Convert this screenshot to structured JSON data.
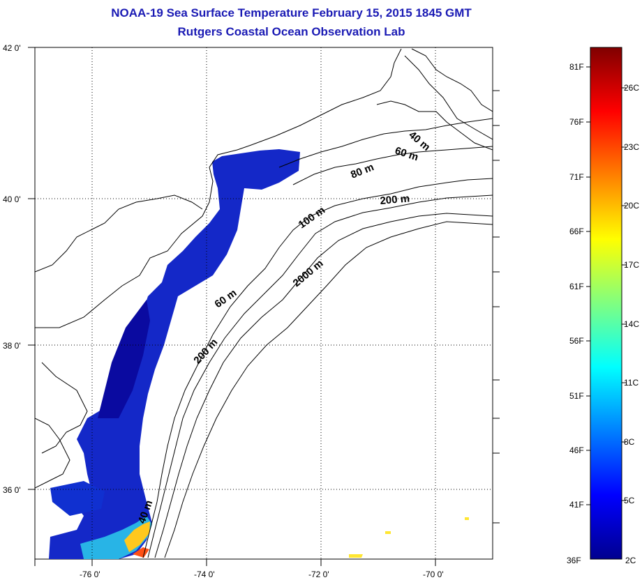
{
  "title": "NOAA-19 Sea Surface Temperature February 15, 2015 1845 GMT",
  "subtitle": "Rutgers Coastal Ocean Observation Lab",
  "map": {
    "lon_range": [
      -77,
      -69
    ],
    "lat_range": [
      35,
      42
    ],
    "lon_ticks": [
      "-76 0'",
      "-74 0'",
      "-72 0'",
      "-70 0'"
    ],
    "lat_ticks": [
      "42 0'",
      "40 0'",
      "38 0'",
      "36 0'"
    ],
    "grid": true,
    "depth_labels": [
      "40 m",
      "60 m",
      "80 m",
      "100 m",
      "200 m",
      "2000 m",
      "60 m",
      "200 m",
      "40 m"
    ]
  },
  "colorbar": {
    "fahrenheit": [
      "81F",
      "76F",
      "71F",
      "66F",
      "61F",
      "56F",
      "51F",
      "46F",
      "41F",
      "36F"
    ],
    "celsius": [
      "26C",
      "23C",
      "20C",
      "17C",
      "14C",
      "11C",
      "8C",
      "5C",
      "2C"
    ],
    "colors": [
      "#00008f",
      "#0000ff",
      "#0080ff",
      "#00ffff",
      "#80ff80",
      "#ffff00",
      "#ff8000",
      "#ff0000",
      "#800000"
    ]
  }
}
